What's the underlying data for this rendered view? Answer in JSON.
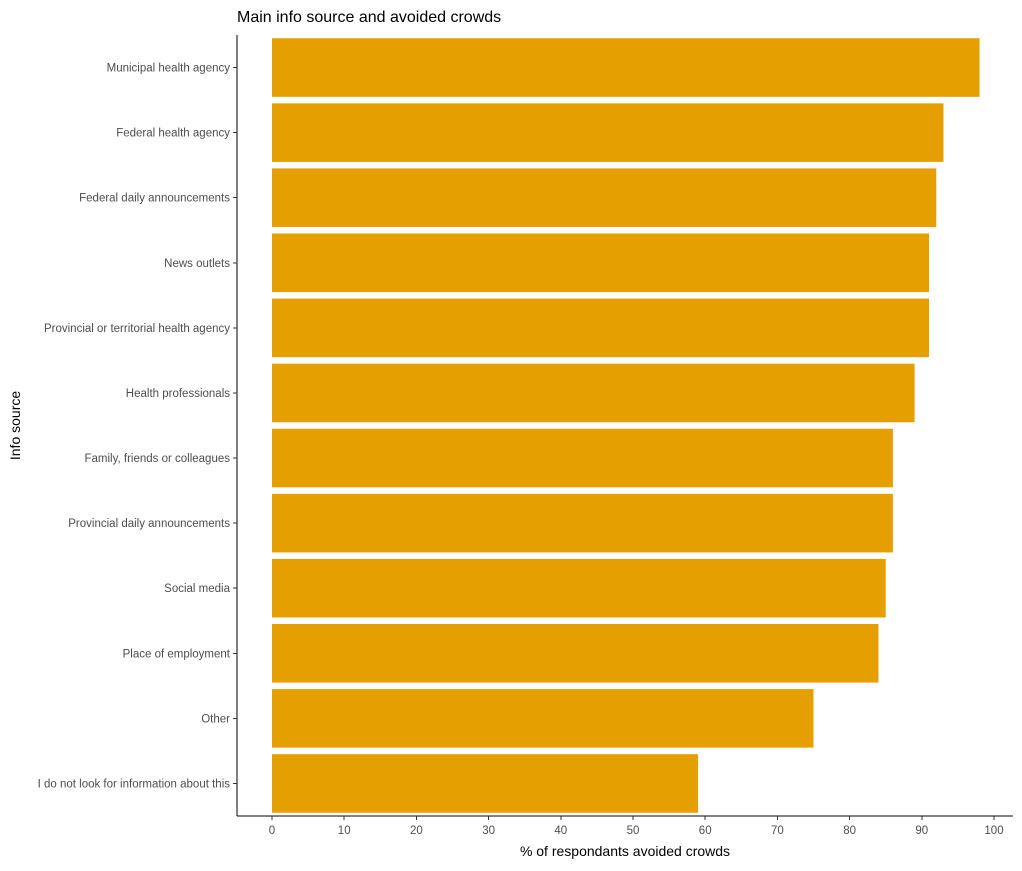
{
  "chart_data": {
    "type": "bar",
    "orientation": "horizontal",
    "title": "Main info source and avoided crowds",
    "xlabel": "% of respondants avoided crowds",
    "ylabel": "Info source",
    "xlim": [
      0,
      100
    ],
    "x_ticks": [
      0,
      10,
      20,
      30,
      40,
      50,
      60,
      70,
      80,
      90,
      100
    ],
    "grid": false,
    "legend": "none",
    "bar_color": "#E69F00",
    "categories": [
      "Municipal health agency",
      "Federal health agency",
      "Federal daily announcements",
      "News outlets",
      "Provincial or territorial health agency",
      "Health professionals",
      "Family, friends or colleagues",
      "Provincial daily announcements",
      "Social media",
      "Place of employment",
      "Other",
      "I do not look for information about this"
    ],
    "values": [
      98,
      93,
      92,
      91,
      91,
      89,
      86,
      86,
      85,
      84,
      75,
      59
    ]
  }
}
